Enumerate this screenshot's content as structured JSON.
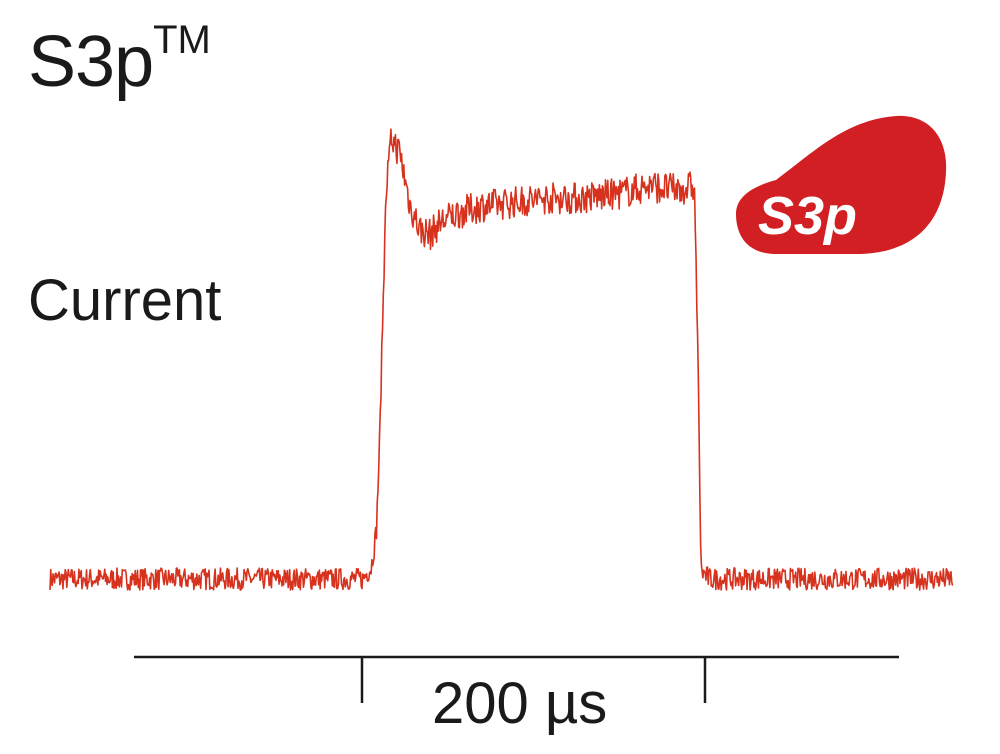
{
  "header": {
    "title": "S3p",
    "title_mark": "TM"
  },
  "logo": {
    "text": "S3p",
    "color": "#d11f24"
  },
  "colors": {
    "trace": "#d7321e",
    "text": "#1a1a1a"
  },
  "chart_data": {
    "type": "line",
    "title": "S3pTM",
    "ylabel": "Current",
    "xlabel": "",
    "scale_bar": {
      "label": "200 µs",
      "length_us": 200
    },
    "xlim": [
      -185,
      349
    ],
    "ylim": [
      0,
      1
    ],
    "grid": false,
    "legend": "none",
    "series": [
      {
        "name": "",
        "points": [
          [
            -185,
            0.0
          ],
          [
            0,
            0.0
          ],
          [
            5,
            0.03
          ],
          [
            8,
            0.12
          ],
          [
            10,
            0.35
          ],
          [
            12,
            0.7
          ],
          [
            14,
            0.98
          ],
          [
            17,
            1.1
          ],
          [
            22,
            1.06
          ],
          [
            28,
            0.93
          ],
          [
            34,
            0.87
          ],
          [
            40,
            0.86
          ],
          [
            46,
            0.89
          ],
          [
            55,
            0.91
          ],
          [
            70,
            0.93
          ],
          [
            90,
            0.94
          ],
          [
            110,
            0.95
          ],
          [
            130,
            0.95
          ],
          [
            150,
            0.96
          ],
          [
            170,
            0.98
          ],
          [
            186,
            0.97
          ],
          [
            196,
            0.98
          ],
          [
            198,
            0.6
          ],
          [
            200,
            0.02
          ],
          [
            205,
            0.0
          ],
          [
            349,
            0.0
          ]
        ]
      }
    ]
  }
}
